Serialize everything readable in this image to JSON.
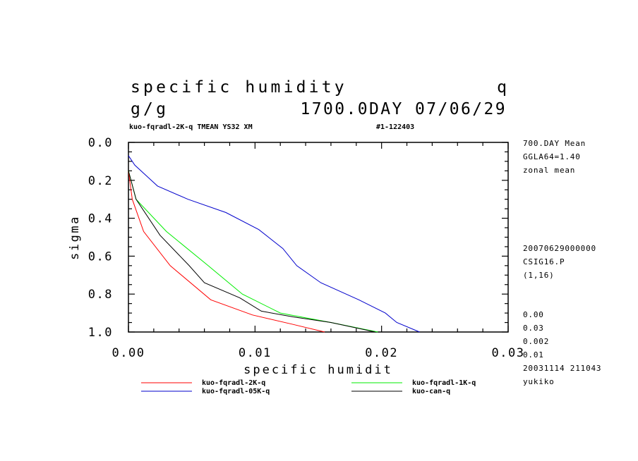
{
  "header": {
    "title_left": "specific humidity",
    "title_right": "q",
    "units": "g/g",
    "day_date": "1700.0DAY 07/06/29",
    "run_name": "kuo-fqradl-2K-q TMEAN YS32 XM",
    "run_id": "#1-122403"
  },
  "side_info": {
    "block1": [
      "700.DAY Mean",
      "GGLA64=1.40",
      "zonal mean"
    ],
    "block2": [
      "20070629000000",
      "CSIG16.P",
      "(1,16)"
    ],
    "block3": [
      "0.00",
      "0.03",
      "0.002",
      "0.01",
      "20031114 211043",
      "yukiko"
    ]
  },
  "chart_data": {
    "type": "line",
    "xlabel": "specific humidit",
    "ylabel": "sigma",
    "xlim": [
      0.0,
      0.03
    ],
    "ylim": [
      0.0,
      1.0
    ],
    "y_inverted": true,
    "x_ticks": [
      0.0,
      0.01,
      0.02,
      0.03
    ],
    "x_tick_labels": [
      "0.00",
      "0.01",
      "0.02",
      "0.03"
    ],
    "y_ticks": [
      0.0,
      0.2,
      0.4,
      0.6,
      0.8,
      1.0
    ],
    "y_tick_labels": [
      "0.0",
      "0.2",
      "0.4",
      "0.6",
      "0.8",
      "1.0"
    ],
    "grid": false,
    "legend_placement": "bottom",
    "series": [
      {
        "name": "kuo-fqradl-2K-q",
        "color": "#ff0000",
        "x": [
          0.0,
          0.0003,
          0.0012,
          0.0033,
          0.0065,
          0.0098,
          0.013,
          0.0155
        ],
        "y": [
          0.15,
          0.3,
          0.47,
          0.65,
          0.83,
          0.91,
          0.96,
          1.0
        ]
      },
      {
        "name": "kuo-fqradl-1K-q",
        "color": "#00ee00",
        "x": [
          0.0,
          0.0006,
          0.003,
          0.0063,
          0.009,
          0.012,
          0.016,
          0.0197
        ],
        "y": [
          0.15,
          0.3,
          0.47,
          0.65,
          0.8,
          0.9,
          0.95,
          1.0
        ]
      },
      {
        "name": "kuo-fqradl-05K-q",
        "color": "#0000cc",
        "x": [
          0.0,
          0.0005,
          0.0023,
          0.0047,
          0.0077,
          0.0103,
          0.0122,
          0.0133,
          0.0152,
          0.0182,
          0.0203,
          0.0212,
          0.023
        ],
        "y": [
          0.07,
          0.12,
          0.23,
          0.3,
          0.37,
          0.46,
          0.56,
          0.65,
          0.74,
          0.83,
          0.9,
          0.95,
          1.0
        ]
      },
      {
        "name": "kuo-can-q",
        "color": "#000000",
        "x": [
          0.0,
          0.0006,
          0.0025,
          0.0048,
          0.006,
          0.0088,
          0.0105,
          0.013,
          0.016,
          0.0195
        ],
        "y": [
          0.15,
          0.3,
          0.49,
          0.65,
          0.74,
          0.82,
          0.89,
          0.92,
          0.95,
          1.0
        ]
      }
    ]
  }
}
